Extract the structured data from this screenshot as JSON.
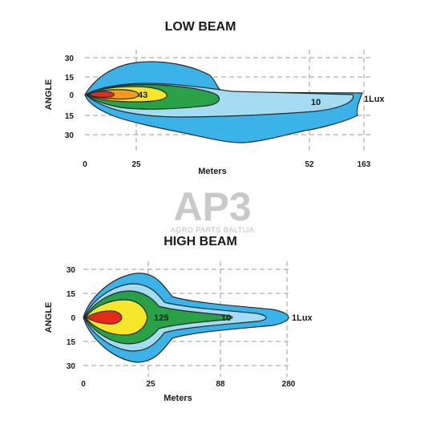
{
  "low_beam": {
    "title": "LOW BEAM",
    "y_ticks": [
      "30",
      "15",
      "0",
      "15",
      "30"
    ],
    "x_ticks": [
      "0",
      "25",
      "52",
      "163"
    ],
    "ylabel": "ANGLE",
    "xlabel": "Meters",
    "contour_labels": [
      "43",
      "10",
      "1Lux"
    ]
  },
  "high_beam": {
    "title": "HIGH BEAM",
    "y_ticks": [
      "30",
      "15",
      "0",
      "15",
      "30"
    ],
    "x_ticks": [
      "0",
      "25",
      "88",
      "280"
    ],
    "ylabel": "ANGLE",
    "xlabel": "Meters",
    "contour_labels": [
      "125",
      "10",
      "1Lux"
    ]
  },
  "watermark": {
    "logo": "AP3",
    "tagline": "AGRO PARTS BALTIJA"
  },
  "colors": {
    "outer_blue": "#3bb3e8",
    "light_blue": "#a6dcf2",
    "green": "#2aa147",
    "yellow": "#f5e62a",
    "orange": "#f39a1f",
    "red": "#e32b1c",
    "outline": "#1f2a30"
  }
}
